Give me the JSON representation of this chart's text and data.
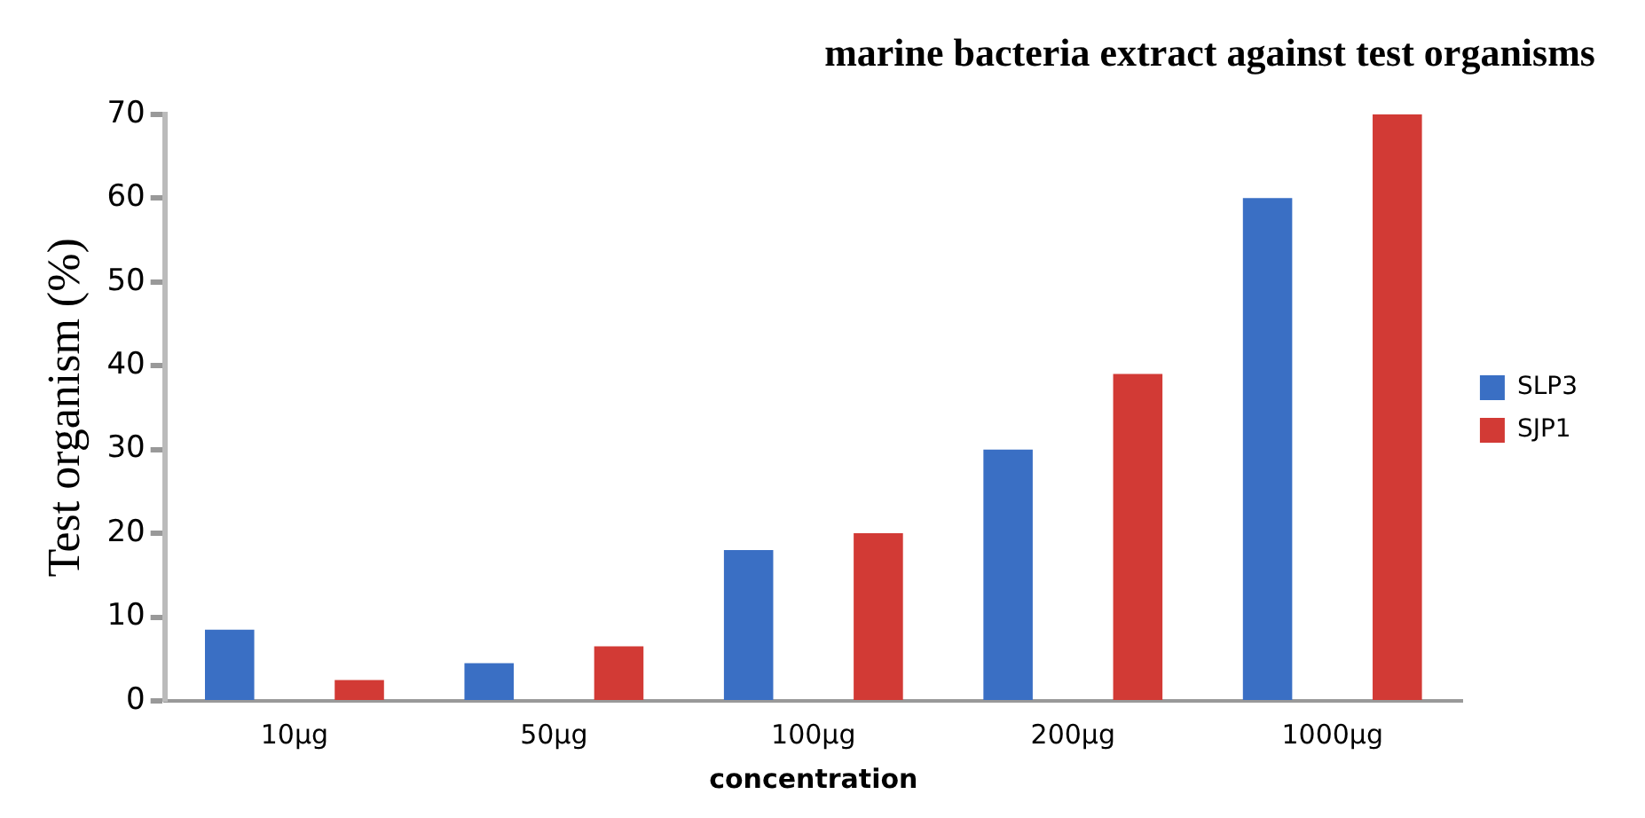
{
  "chart_data": {
    "type": "bar",
    "title": "marine bacteria extract against test organisms",
    "xlabel": "concentration",
    "ylabel": "Test organism (%)",
    "categories": [
      "10µg",
      "50µg",
      "100µg",
      "200µg",
      "1000µg"
    ],
    "series": [
      {
        "name": "SLP3",
        "color": "#3a6fc4",
        "values": [
          8.5,
          4.5,
          18,
          30,
          60
        ]
      },
      {
        "name": "SJP1",
        "color": "#d23a35",
        "values": [
          2.5,
          6.5,
          20,
          39,
          70
        ]
      }
    ],
    "ylim": [
      0,
      70
    ],
    "yticks": [
      0,
      10,
      20,
      30,
      40,
      50,
      60,
      70
    ],
    "grid": false,
    "legend": "right"
  }
}
